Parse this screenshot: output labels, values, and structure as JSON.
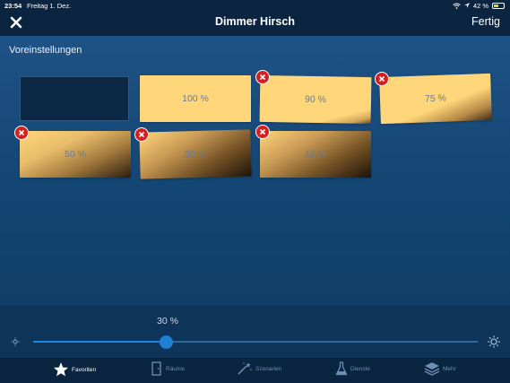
{
  "status": {
    "time": "23:54",
    "date": "Freitag 1. Dez.",
    "battery": "42 %"
  },
  "nav": {
    "title": "Dimmer Hirsch",
    "done_label": "Fertig"
  },
  "section_title": "Voreinstellungen",
  "presets": [
    {
      "label": "",
      "empty": true
    },
    {
      "label": "100 %",
      "deletable": false
    },
    {
      "label": "90 %",
      "deletable": true
    },
    {
      "label": "75 %",
      "deletable": true
    },
    {
      "label": "50 %",
      "deletable": true
    },
    {
      "label": "30 %",
      "deletable": true
    },
    {
      "label": "10 %",
      "deletable": true
    }
  ],
  "slider": {
    "value_label": "30 %",
    "fraction": 0.3
  },
  "tabs": [
    {
      "label": "Favoriten",
      "icon": "star-icon",
      "active": true
    },
    {
      "label": "Räume",
      "icon": "door-icon",
      "active": false
    },
    {
      "label": "Szenarien",
      "icon": "magic-wand-icon",
      "active": false
    },
    {
      "label": "Dienste",
      "icon": "flask-icon",
      "active": false
    },
    {
      "label": "Mehr",
      "icon": "layers-icon",
      "active": false
    }
  ],
  "colors": {
    "accent": "#1d7fd6",
    "tile": "#ffd67a",
    "delete": "#d61f1f",
    "background": "#0b2440"
  }
}
